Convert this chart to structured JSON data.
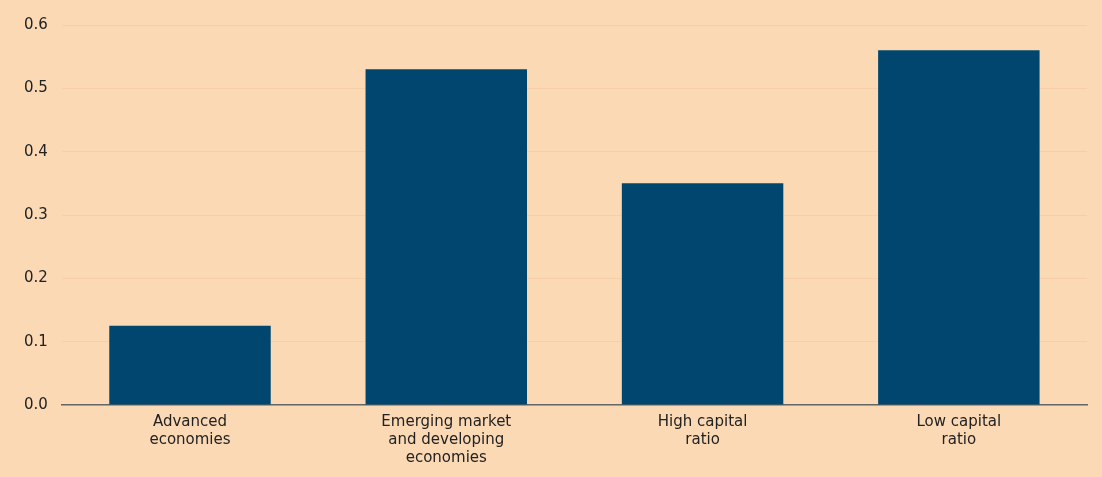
{
  "chart_data": {
    "type": "bar",
    "categories": [
      "Advanced economies",
      "Emerging market and developing economies",
      "High capital ratio",
      "Low capital ratio"
    ],
    "values": [
      0.125,
      0.53,
      0.35,
      0.56
    ],
    "color": "#00466e",
    "ylim": [
      0,
      0.6
    ],
    "yticks": [
      {
        "value": 0,
        "label": "0.0"
      },
      0.1,
      0.2,
      0.3,
      0.4,
      0.5,
      0.6
    ],
    "grid": "y",
    "legend": false
  }
}
